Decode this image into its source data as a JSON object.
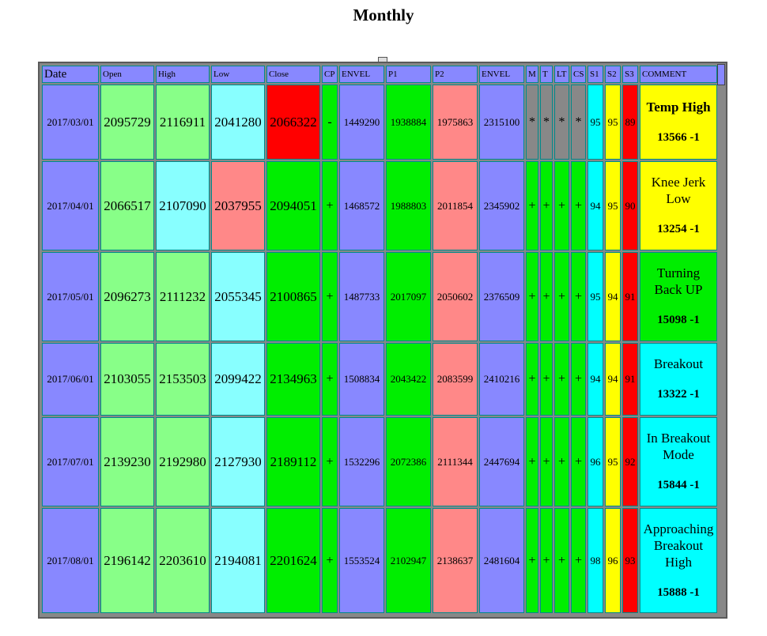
{
  "title": "Monthly",
  "colors": {
    "blue": "#8888ff",
    "light_green": "#88ff88",
    "cyan": "#88ffff",
    "pink": "#ff8888",
    "green": "#00ee00",
    "red": "#ff0000",
    "gray": "#888888",
    "yellow": "#ffff00",
    "aqua": "#00ffff"
  },
  "columns": [
    "Date",
    "Open",
    "High",
    "Low",
    "Close",
    "CP",
    "ENVEL",
    "P1",
    "P2",
    "ENVEL",
    "M",
    "T",
    "LT",
    "CS",
    "S1",
    "S2",
    "S3",
    "COMMENT"
  ],
  "rows": [
    {
      "date": "2017/03/01",
      "open": "2095729",
      "high": "2116911",
      "low": "2041280",
      "close": "2066322",
      "cp": "-",
      "envel1": "1449290",
      "p1": "1938884",
      "p2": "1975863",
      "envel2": "2315100",
      "m": "*",
      "t": "*",
      "lt": "*",
      "cs": "*",
      "s1": "95",
      "s2": "95",
      "s3": "89",
      "comment": "Temp High",
      "comment_price": "13566 -1",
      "low_color": "cyan",
      "close_color": "red",
      "cp_color": "green",
      "flag_color": "gray",
      "comment_color": "yellow",
      "comment_bold": true
    },
    {
      "date": "2017/04/01",
      "open": "2066517",
      "high": "2107090",
      "low": "2037955",
      "close": "2094051",
      "cp": "+",
      "envel1": "1468572",
      "p1": "1988803",
      "p2": "2011854",
      "envel2": "2345902",
      "m": "+",
      "t": "+",
      "lt": "+",
      "cs": "+",
      "s1": "94",
      "s2": "95",
      "s3": "90",
      "comment": "Knee Jerk Low",
      "comment_price": "13254 -1",
      "high_color": "cyan",
      "low_color": "pink",
      "close_color": "green",
      "cp_color": "green",
      "flag_color": "green",
      "comment_color": "yellow",
      "comment_bold": false
    },
    {
      "date": "2017/05/01",
      "open": "2096273",
      "high": "2111232",
      "low": "2055345",
      "close": "2100865",
      "cp": "+",
      "envel1": "1487733",
      "p1": "2017097",
      "p2": "2050602",
      "envel2": "2376509",
      "m": "+",
      "t": "+",
      "lt": "+",
      "cs": "+",
      "s1": "95",
      "s2": "94",
      "s3": "91",
      "comment": "Turning Back UP",
      "comment_price": "15098 -1",
      "high_color": "light_green",
      "low_color": "cyan",
      "close_color": "green",
      "cp_color": "green",
      "flag_color": "green",
      "comment_color": "green",
      "comment_bold": false
    },
    {
      "date": "2017/06/01",
      "open": "2103055",
      "high": "2153503",
      "low": "2099422",
      "close": "2134963",
      "cp": "+",
      "envel1": "1508834",
      "p1": "2043422",
      "p2": "2083599",
      "envel2": "2410216",
      "m": "+",
      "t": "+",
      "lt": "+",
      "cs": "+",
      "s1": "94",
      "s2": "94",
      "s3": "91",
      "comment": "Breakout",
      "comment_price": "13322 -1",
      "high_color": "light_green",
      "low_color": "cyan",
      "close_color": "green",
      "cp_color": "green",
      "flag_color": "green",
      "comment_color": "aqua",
      "comment_bold": false
    },
    {
      "date": "2017/07/01",
      "open": "2139230",
      "high": "2192980",
      "low": "2127930",
      "close": "2189112",
      "cp": "+",
      "envel1": "1532296",
      "p1": "2072386",
      "p2": "2111344",
      "envel2": "2447694",
      "m": "+",
      "t": "+",
      "lt": "+",
      "cs": "+",
      "s1": "96",
      "s2": "95",
      "s3": "92",
      "comment": "In Breakout Mode",
      "comment_price": "15844 -1",
      "high_color": "light_green",
      "low_color": "cyan",
      "close_color": "green",
      "cp_color": "green",
      "flag_color": "green",
      "comment_color": "aqua",
      "comment_bold": false
    },
    {
      "date": "2017/08/01",
      "open": "2196142",
      "high": "2203610",
      "low": "2194081",
      "close": "2201624",
      "cp": "+",
      "envel1": "1553524",
      "p1": "2102947",
      "p2": "2138637",
      "envel2": "2481604",
      "m": "+",
      "t": "+",
      "lt": "+",
      "cs": "+",
      "s1": "98",
      "s2": "96",
      "s3": "93",
      "comment": "Approaching Breakout High",
      "comment_price": "15888 -1",
      "high_color": "light_green",
      "low_color": "cyan",
      "close_color": "green",
      "cp_color": "green",
      "flag_color": "green",
      "comment_color": "aqua",
      "comment_bold": false
    }
  ]
}
